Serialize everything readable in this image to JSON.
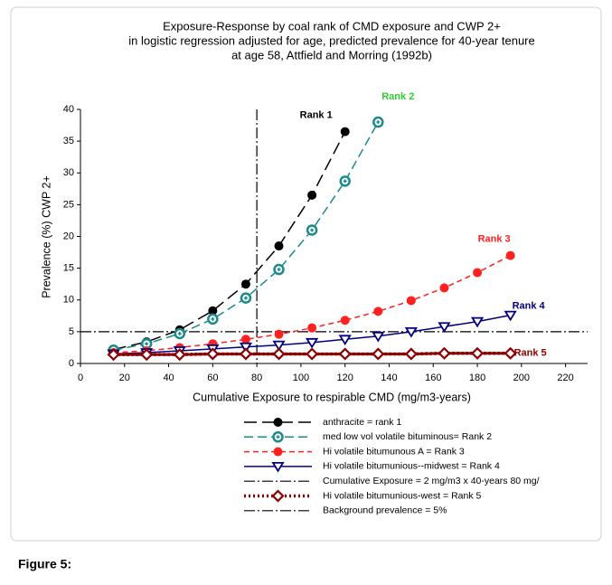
{
  "chart_data": {
    "type": "line",
    "title": "Exposure-Response by coal rank of CMD exposure and CWP 2+",
    "subtitle": [
      "in logistic regression adjusted for age, predicted prevalence for 40-year tenure",
      "at age 58, Attfield and Morring (1992b)"
    ],
    "x_label": "Cumulative Exposure to respirable CMD (mg/m3-years)",
    "y_label": "Prevalence (%) CWP 2+",
    "xlim": [
      0,
      230
    ],
    "xticks": [
      0,
      20,
      40,
      60,
      80,
      100,
      120,
      140,
      160,
      180,
      200,
      220
    ],
    "ylim": [
      0,
      40
    ],
    "yticks": [
      0,
      5,
      10,
      15,
      20,
      25,
      30,
      35,
      40
    ],
    "series": [
      {
        "name": "anthracite = rank 1",
        "label": "Rank 1",
        "color": "#000000",
        "label_color": "#000000",
        "x": [
          15,
          30,
          45,
          60,
          75,
          90,
          105,
          120
        ],
        "values": [
          2.2,
          3.4,
          5.3,
          8.3,
          12.5,
          18.5,
          26.5,
          36.5
        ]
      },
      {
        "name": "med low vol volatile bituminous= Rank 2",
        "label": "Rank 2",
        "color": "#1a8a8a",
        "label_color": "#33cc33",
        "x": [
          15,
          30,
          45,
          60,
          75,
          90,
          105,
          120,
          135
        ],
        "values": [
          2.1,
          3.1,
          4.7,
          7.0,
          10.3,
          14.8,
          21.0,
          28.7,
          38.0
        ]
      },
      {
        "name": "Hi volatile bitumunous A = Rank 3",
        "label": "Rank 3",
        "color": "#ff2020",
        "label_color": "#ff2020",
        "x": [
          15,
          30,
          45,
          60,
          75,
          90,
          105,
          120,
          135,
          150,
          165,
          180,
          195
        ],
        "values": [
          1.7,
          2.0,
          2.5,
          3.1,
          3.8,
          4.6,
          5.6,
          6.8,
          8.2,
          9.9,
          11.9,
          14.3,
          17.0
        ]
      },
      {
        "name": "Hi volatile bitumunious--midwest = Rank 4",
        "label": "Rank 4",
        "color": "#00007f",
        "label_color": "#00007f",
        "x": [
          15,
          30,
          45,
          60,
          75,
          90,
          105,
          120,
          135,
          150,
          165,
          180,
          195
        ],
        "values": [
          1.5,
          1.7,
          2.0,
          2.3,
          2.6,
          2.9,
          3.3,
          3.8,
          4.3,
          5.0,
          5.8,
          6.6,
          7.6
        ]
      },
      {
        "name": "Hi volatile bitumunious-west = Rank 5",
        "label": "Rank 5",
        "color": "#8b0000",
        "label_color": "#8b0000",
        "x": [
          15,
          30,
          45,
          60,
          75,
          90,
          105,
          120,
          135,
          150,
          165,
          180,
          195
        ],
        "values": [
          1.4,
          1.4,
          1.4,
          1.5,
          1.5,
          1.5,
          1.5,
          1.5,
          1.5,
          1.5,
          1.6,
          1.6,
          1.6
        ]
      }
    ],
    "reference_lines": [
      {
        "name": "Cumulative Exposure = 2 mg/m3 x 40-years 80 mg/",
        "axis": "x",
        "value": 80,
        "color": "#000000"
      },
      {
        "name": "Background prevalence = 5%",
        "axis": "y",
        "value": 5,
        "color": "#000000"
      }
    ],
    "caption": "Figure 5:"
  }
}
